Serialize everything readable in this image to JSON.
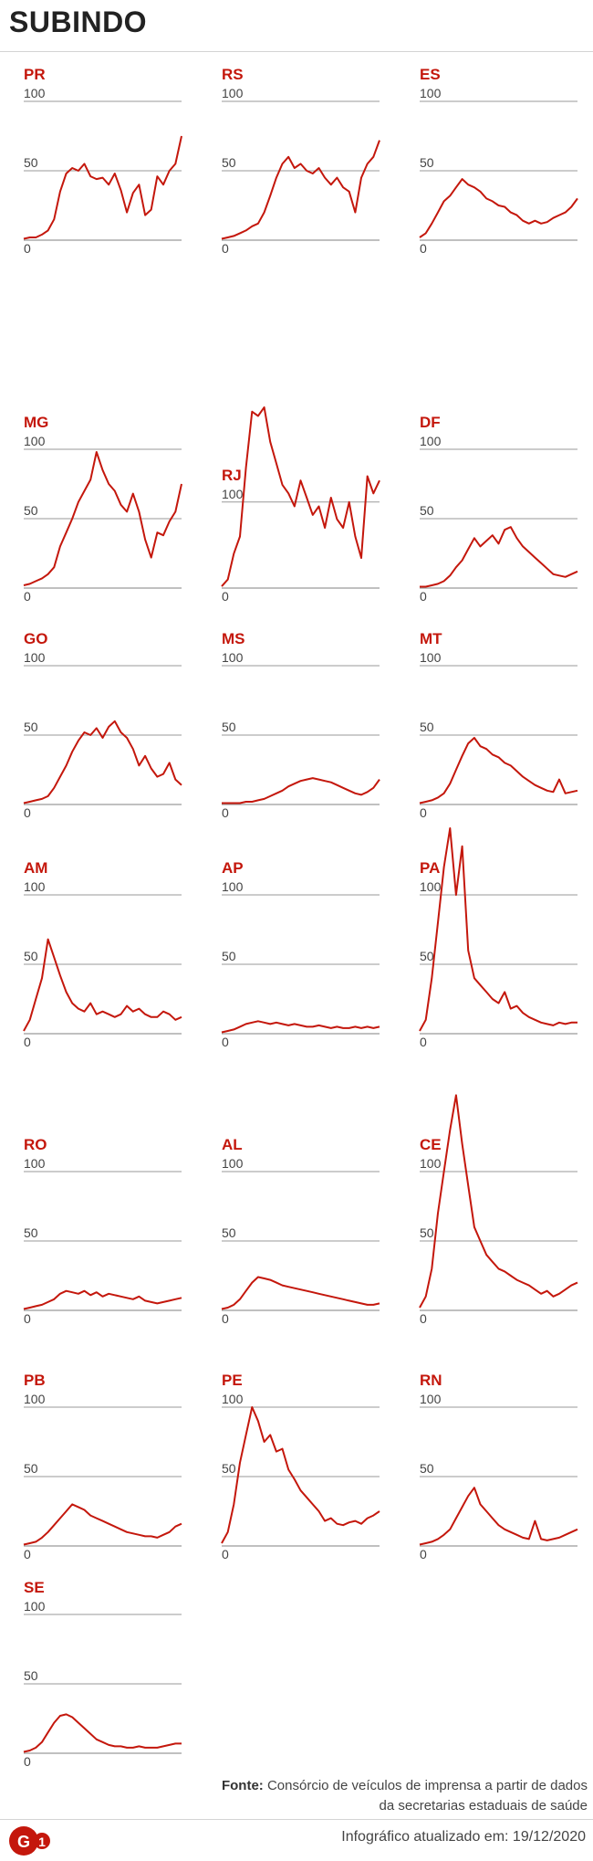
{
  "header": {
    "title": "SUBINDO"
  },
  "footer": {
    "source_label": "Fonte:",
    "source_text": "Consórcio de veículos de imprensa a partir de dados da secretarias estaduais de saúde",
    "updated": "Infográfico atualizado em: 19/12/2020",
    "logo_text": "G1"
  },
  "colors": {
    "line": "#c4170c",
    "label": "#c4170c",
    "grid": "#9a9a9a",
    "text": "#444444"
  },
  "chart_data": [
    {
      "type": "line",
      "title": "PR",
      "yticks": [
        0,
        50,
        100
      ],
      "ylim": [
        0,
        100
      ],
      "values": [
        1,
        2,
        2,
        4,
        7,
        15,
        35,
        48,
        52,
        50,
        55,
        46,
        44,
        45,
        40,
        48,
        36,
        20,
        34,
        40,
        18,
        22,
        46,
        40,
        50,
        55,
        75
      ]
    },
    {
      "type": "line",
      "title": "RS",
      "yticks": [
        0,
        50,
        100
      ],
      "ylim": [
        0,
        100
      ],
      "values": [
        1,
        2,
        3,
        5,
        7,
        10,
        12,
        20,
        32,
        45,
        55,
        60,
        52,
        55,
        50,
        48,
        52,
        45,
        40,
        45,
        38,
        35,
        20,
        45,
        55,
        60,
        72
      ]
    },
    {
      "type": "line",
      "title": "ES",
      "yticks": [
        0,
        50,
        100
      ],
      "ylim": [
        0,
        100
      ],
      "values": [
        2,
        5,
        12,
        20,
        28,
        32,
        38,
        44,
        40,
        38,
        35,
        30,
        28,
        25,
        24,
        20,
        18,
        14,
        12,
        14,
        12,
        13,
        16,
        18,
        20,
        24,
        30
      ]
    },
    {
      "type": "line",
      "title": "MG",
      "yticks": [
        0,
        50,
        100
      ],
      "ylim": [
        0,
        100
      ],
      "values": [
        2,
        3,
        5,
        7,
        10,
        15,
        30,
        40,
        50,
        62,
        70,
        78,
        98,
        85,
        75,
        70,
        60,
        55,
        68,
        55,
        35,
        22,
        40,
        38,
        48,
        55,
        75
      ]
    },
    {
      "type": "line",
      "title": "RJ",
      "yticks": [
        0,
        100
      ],
      "ylim": [
        0,
        220
      ],
      "values": [
        2,
        10,
        40,
        60,
        140,
        205,
        200,
        210,
        170,
        145,
        120,
        110,
        95,
        125,
        105,
        85,
        95,
        70,
        105,
        80,
        70,
        100,
        60,
        35,
        130,
        110,
        125
      ]
    },
    {
      "type": "line",
      "title": "DF",
      "yticks": [
        0,
        50,
        100
      ],
      "ylim": [
        0,
        100
      ],
      "values": [
        1,
        1,
        2,
        3,
        5,
        9,
        15,
        20,
        28,
        36,
        30,
        34,
        38,
        32,
        42,
        44,
        36,
        30,
        26,
        22,
        18,
        14,
        10,
        9,
        8,
        10,
        12
      ]
    },
    {
      "type": "line",
      "title": "GO",
      "yticks": [
        0,
        50,
        100
      ],
      "ylim": [
        0,
        100
      ],
      "values": [
        1,
        2,
        3,
        4,
        6,
        12,
        20,
        28,
        38,
        46,
        52,
        50,
        55,
        48,
        56,
        60,
        52,
        48,
        40,
        28,
        35,
        26,
        20,
        22,
        30,
        18,
        14
      ]
    },
    {
      "type": "line",
      "title": "MS",
      "yticks": [
        0,
        50,
        100
      ],
      "ylim": [
        0,
        100
      ],
      "values": [
        1,
        1,
        1,
        1,
        2,
        2,
        3,
        4,
        6,
        8,
        10,
        13,
        15,
        17,
        18,
        19,
        18,
        17,
        16,
        14,
        12,
        10,
        8,
        7,
        9,
        12,
        18
      ]
    },
    {
      "type": "line",
      "title": "MT",
      "yticks": [
        0,
        50,
        100
      ],
      "ylim": [
        0,
        100
      ],
      "values": [
        1,
        2,
        3,
        5,
        8,
        15,
        25,
        35,
        44,
        48,
        42,
        40,
        36,
        34,
        30,
        28,
        24,
        20,
        17,
        14,
        12,
        10,
        9,
        18,
        8,
        9,
        10
      ]
    },
    {
      "type": "line",
      "title": "AM",
      "yticks": [
        0,
        50,
        100
      ],
      "ylim": [
        0,
        100
      ],
      "values": [
        2,
        10,
        25,
        40,
        68,
        55,
        42,
        30,
        22,
        18,
        16,
        22,
        14,
        16,
        14,
        12,
        14,
        20,
        16,
        18,
        14,
        12,
        12,
        16,
        14,
        10,
        12
      ]
    },
    {
      "type": "line",
      "title": "AP",
      "yticks": [
        0,
        50,
        100
      ],
      "ylim": [
        0,
        100
      ],
      "values": [
        1,
        2,
        3,
        5,
        7,
        8,
        9,
        8,
        7,
        8,
        7,
        6,
        7,
        6,
        5,
        5,
        6,
        5,
        4,
        5,
        4,
        4,
        5,
        4,
        5,
        4,
        5
      ]
    },
    {
      "type": "line",
      "title": "PA",
      "yticks": [
        0,
        50,
        100
      ],
      "ylim": [
        0,
        150
      ],
      "values": [
        2,
        10,
        40,
        80,
        120,
        148,
        100,
        135,
        60,
        40,
        35,
        30,
        25,
        22,
        30,
        18,
        20,
        15,
        12,
        10,
        8,
        7,
        6,
        8,
        7,
        8,
        8
      ]
    },
    {
      "type": "line",
      "title": "RO",
      "yticks": [
        0,
        50,
        100
      ],
      "ylim": [
        0,
        100
      ],
      "values": [
        1,
        2,
        3,
        4,
        6,
        8,
        12,
        14,
        13,
        12,
        14,
        11,
        13,
        10,
        12,
        11,
        10,
        9,
        8,
        10,
        7,
        6,
        5,
        6,
        7,
        8,
        9
      ]
    },
    {
      "type": "line",
      "title": "AL",
      "yticks": [
        0,
        50,
        100
      ],
      "ylim": [
        0,
        100
      ],
      "values": [
        1,
        2,
        4,
        8,
        14,
        20,
        24,
        23,
        22,
        20,
        18,
        17,
        16,
        15,
        14,
        13,
        12,
        11,
        10,
        9,
        8,
        7,
        6,
        5,
        4,
        4,
        5
      ]
    },
    {
      "type": "line",
      "title": "CE",
      "yticks": [
        0,
        50,
        100
      ],
      "ylim": [
        0,
        155
      ],
      "values": [
        2,
        10,
        30,
        70,
        100,
        130,
        155,
        120,
        90,
        60,
        50,
        40,
        35,
        30,
        28,
        25,
        22,
        20,
        18,
        15,
        12,
        14,
        10,
        12,
        15,
        18,
        20
      ]
    },
    {
      "type": "line",
      "title": "PB",
      "yticks": [
        0,
        50,
        100
      ],
      "ylim": [
        0,
        100
      ],
      "values": [
        1,
        2,
        3,
        6,
        10,
        15,
        20,
        25,
        30,
        28,
        26,
        22,
        20,
        18,
        16,
        14,
        12,
        10,
        9,
        8,
        7,
        7,
        6,
        8,
        10,
        14,
        16
      ]
    },
    {
      "type": "line",
      "title": "PE",
      "yticks": [
        0,
        50,
        100
      ],
      "ylim": [
        0,
        100
      ],
      "values": [
        2,
        10,
        30,
        60,
        80,
        100,
        90,
        75,
        80,
        68,
        70,
        55,
        48,
        40,
        35,
        30,
        25,
        18,
        20,
        16,
        15,
        17,
        18,
        16,
        20,
        22,
        25
      ]
    },
    {
      "type": "line",
      "title": "RN",
      "yticks": [
        0,
        50,
        100
      ],
      "ylim": [
        0,
        100
      ],
      "values": [
        1,
        2,
        3,
        5,
        8,
        12,
        20,
        28,
        36,
        42,
        30,
        25,
        20,
        15,
        12,
        10,
        8,
        6,
        5,
        18,
        5,
        4,
        5,
        6,
        8,
        10,
        12
      ]
    },
    {
      "type": "line",
      "title": "SE",
      "yticks": [
        0,
        50,
        100
      ],
      "ylim": [
        0,
        100
      ],
      "values": [
        1,
        2,
        4,
        8,
        15,
        22,
        27,
        28,
        26,
        22,
        18,
        14,
        10,
        8,
        6,
        5,
        5,
        4,
        4,
        5,
        4,
        4,
        4,
        5,
        6,
        7,
        7
      ]
    }
  ]
}
